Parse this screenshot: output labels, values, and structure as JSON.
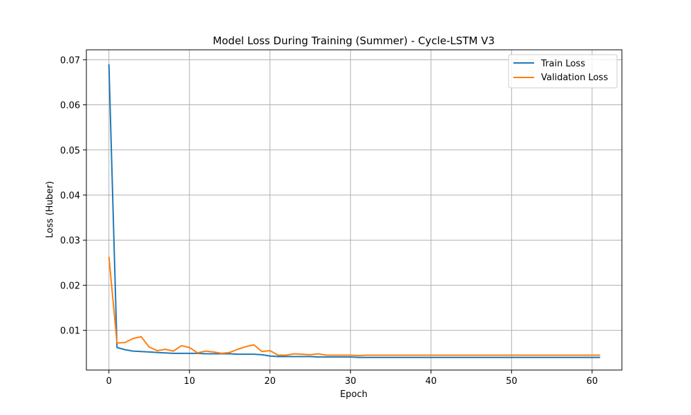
{
  "chart_data": {
    "type": "line",
    "title": "Model Loss During Training (Summer) - Cycle-LSTM V3",
    "xlabel": "Epoch",
    "ylabel": "Loss (Huber)",
    "xlim": [
      -2.8,
      63.7
    ],
    "ylim": [
      0.0012,
      0.0722
    ],
    "xticks": [
      0,
      10,
      20,
      30,
      40,
      50,
      60
    ],
    "xtick_labels": [
      "0",
      "10",
      "20",
      "30",
      "40",
      "50",
      "60"
    ],
    "yticks": [
      0.01,
      0.02,
      0.03,
      0.04,
      0.05,
      0.06,
      0.07
    ],
    "ytick_labels": [
      "0.01",
      "0.02",
      "0.03",
      "0.04",
      "0.05",
      "0.06",
      "0.07"
    ],
    "grid": true,
    "legend_position": "top-right",
    "x": [
      0,
      1,
      2,
      3,
      4,
      5,
      6,
      7,
      8,
      9,
      10,
      11,
      12,
      13,
      14,
      15,
      16,
      17,
      18,
      19,
      20,
      21,
      22,
      23,
      24,
      25,
      26,
      27,
      28,
      29,
      30,
      31,
      32,
      33,
      34,
      35,
      36,
      37,
      38,
      39,
      40,
      41,
      42,
      43,
      44,
      45,
      46,
      47,
      48,
      49,
      50,
      51,
      52,
      53,
      54,
      55,
      56,
      57,
      58,
      59,
      60,
      61
    ],
    "series": [
      {
        "name": "Train Loss",
        "color": "#1f77b4",
        "values": [
          0.069,
          0.0062,
          0.0057,
          0.0054,
          0.0053,
          0.0052,
          0.0051,
          0.005,
          0.0049,
          0.0049,
          0.0049,
          0.0049,
          0.0048,
          0.0048,
          0.0048,
          0.0048,
          0.0047,
          0.0047,
          0.0047,
          0.0046,
          0.0043,
          0.0042,
          0.0042,
          0.0042,
          0.0042,
          0.0042,
          0.0041,
          0.0041,
          0.0041,
          0.0041,
          0.0041,
          0.004,
          0.004,
          0.004,
          0.004,
          0.004,
          0.004,
          0.004,
          0.004,
          0.004,
          0.004,
          0.004,
          0.004,
          0.004,
          0.004,
          0.004,
          0.004,
          0.004,
          0.004,
          0.004,
          0.004,
          0.004,
          0.004,
          0.004,
          0.004,
          0.004,
          0.004,
          0.004,
          0.004,
          0.004,
          0.004,
          0.004
        ]
      },
      {
        "name": "Validation Loss",
        "color": "#ff7f0e",
        "values": [
          0.0263,
          0.0072,
          0.0073,
          0.0082,
          0.0086,
          0.0063,
          0.0055,
          0.0058,
          0.0054,
          0.0066,
          0.0062,
          0.005,
          0.0054,
          0.0052,
          0.0049,
          0.0051,
          0.0058,
          0.0064,
          0.0068,
          0.0053,
          0.0055,
          0.0045,
          0.0045,
          0.0048,
          0.0047,
          0.0046,
          0.0048,
          0.0045,
          0.0045,
          0.0045,
          0.0045,
          0.0044,
          0.0045,
          0.0045,
          0.0045,
          0.0045,
          0.0045,
          0.0045,
          0.0045,
          0.0045,
          0.0045,
          0.0045,
          0.0045,
          0.0045,
          0.0045,
          0.0045,
          0.0045,
          0.0045,
          0.0045,
          0.0045,
          0.0045,
          0.0045,
          0.0045,
          0.0045,
          0.0045,
          0.0045,
          0.0045,
          0.0045,
          0.0045,
          0.0045,
          0.0045,
          0.0045
        ]
      }
    ]
  }
}
